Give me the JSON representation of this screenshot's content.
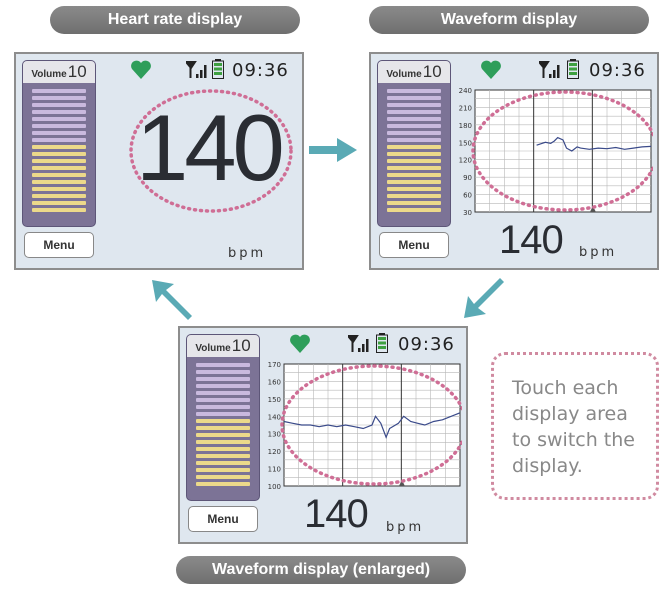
{
  "labels": {
    "top_left": "Heart rate display",
    "top_right": "Waveform display",
    "bottom": "Waveform display (enlarged)"
  },
  "note": {
    "lines": [
      "Touch each",
      "display area",
      "to switch the",
      "display."
    ]
  },
  "screen_common": {
    "volume_label": "Volume",
    "volume_value": "10",
    "menu": "Menu",
    "time": "09:36",
    "unit": "bpm",
    "heart_rate": "140"
  },
  "volume_level": {
    "bars_on": 10,
    "bars_total": 18
  },
  "waveform_normal": {
    "y_ticks": [
      "240",
      "210",
      "180",
      "150",
      "120",
      "90",
      "60",
      "30"
    ],
    "trace": [
      [
        0.35,
        145
      ],
      [
        0.38,
        148
      ],
      [
        0.4,
        150
      ],
      [
        0.43,
        148
      ],
      [
        0.45,
        152
      ],
      [
        0.47,
        158
      ],
      [
        0.5,
        154
      ],
      [
        0.52,
        140
      ],
      [
        0.55,
        135
      ],
      [
        0.58,
        142
      ],
      [
        0.6,
        140
      ],
      [
        0.65,
        138
      ],
      [
        0.7,
        140
      ],
      [
        0.75,
        139
      ],
      [
        0.8,
        141
      ],
      [
        0.85,
        138
      ],
      [
        0.9,
        140
      ],
      [
        0.95,
        142
      ],
      [
        1.0,
        143
      ]
    ]
  },
  "waveform_enlarged": {
    "y_ticks": [
      "170",
      "160",
      "150",
      "140",
      "130",
      "120",
      "110",
      "100"
    ],
    "trace": [
      [
        0.0,
        137
      ],
      [
        0.05,
        136
      ],
      [
        0.1,
        135
      ],
      [
        0.15,
        135
      ],
      [
        0.2,
        134
      ],
      [
        0.25,
        135
      ],
      [
        0.3,
        134
      ],
      [
        0.35,
        135
      ],
      [
        0.4,
        134
      ],
      [
        0.45,
        133
      ],
      [
        0.5,
        135
      ],
      [
        0.52,
        140
      ],
      [
        0.55,
        136
      ],
      [
        0.58,
        128
      ],
      [
        0.6,
        133
      ],
      [
        0.65,
        136
      ],
      [
        0.68,
        140
      ],
      [
        0.72,
        137
      ],
      [
        0.76,
        136
      ],
      [
        0.8,
        135
      ],
      [
        0.85,
        137
      ],
      [
        0.9,
        138
      ],
      [
        0.95,
        140
      ],
      [
        1.0,
        142
      ]
    ]
  },
  "colors": {
    "arrow": "#5aaab5",
    "heart": "#2e9e5a",
    "ellipse": "#cf6e95",
    "battery": "#3ea040",
    "trace": "#3a4a8a"
  }
}
